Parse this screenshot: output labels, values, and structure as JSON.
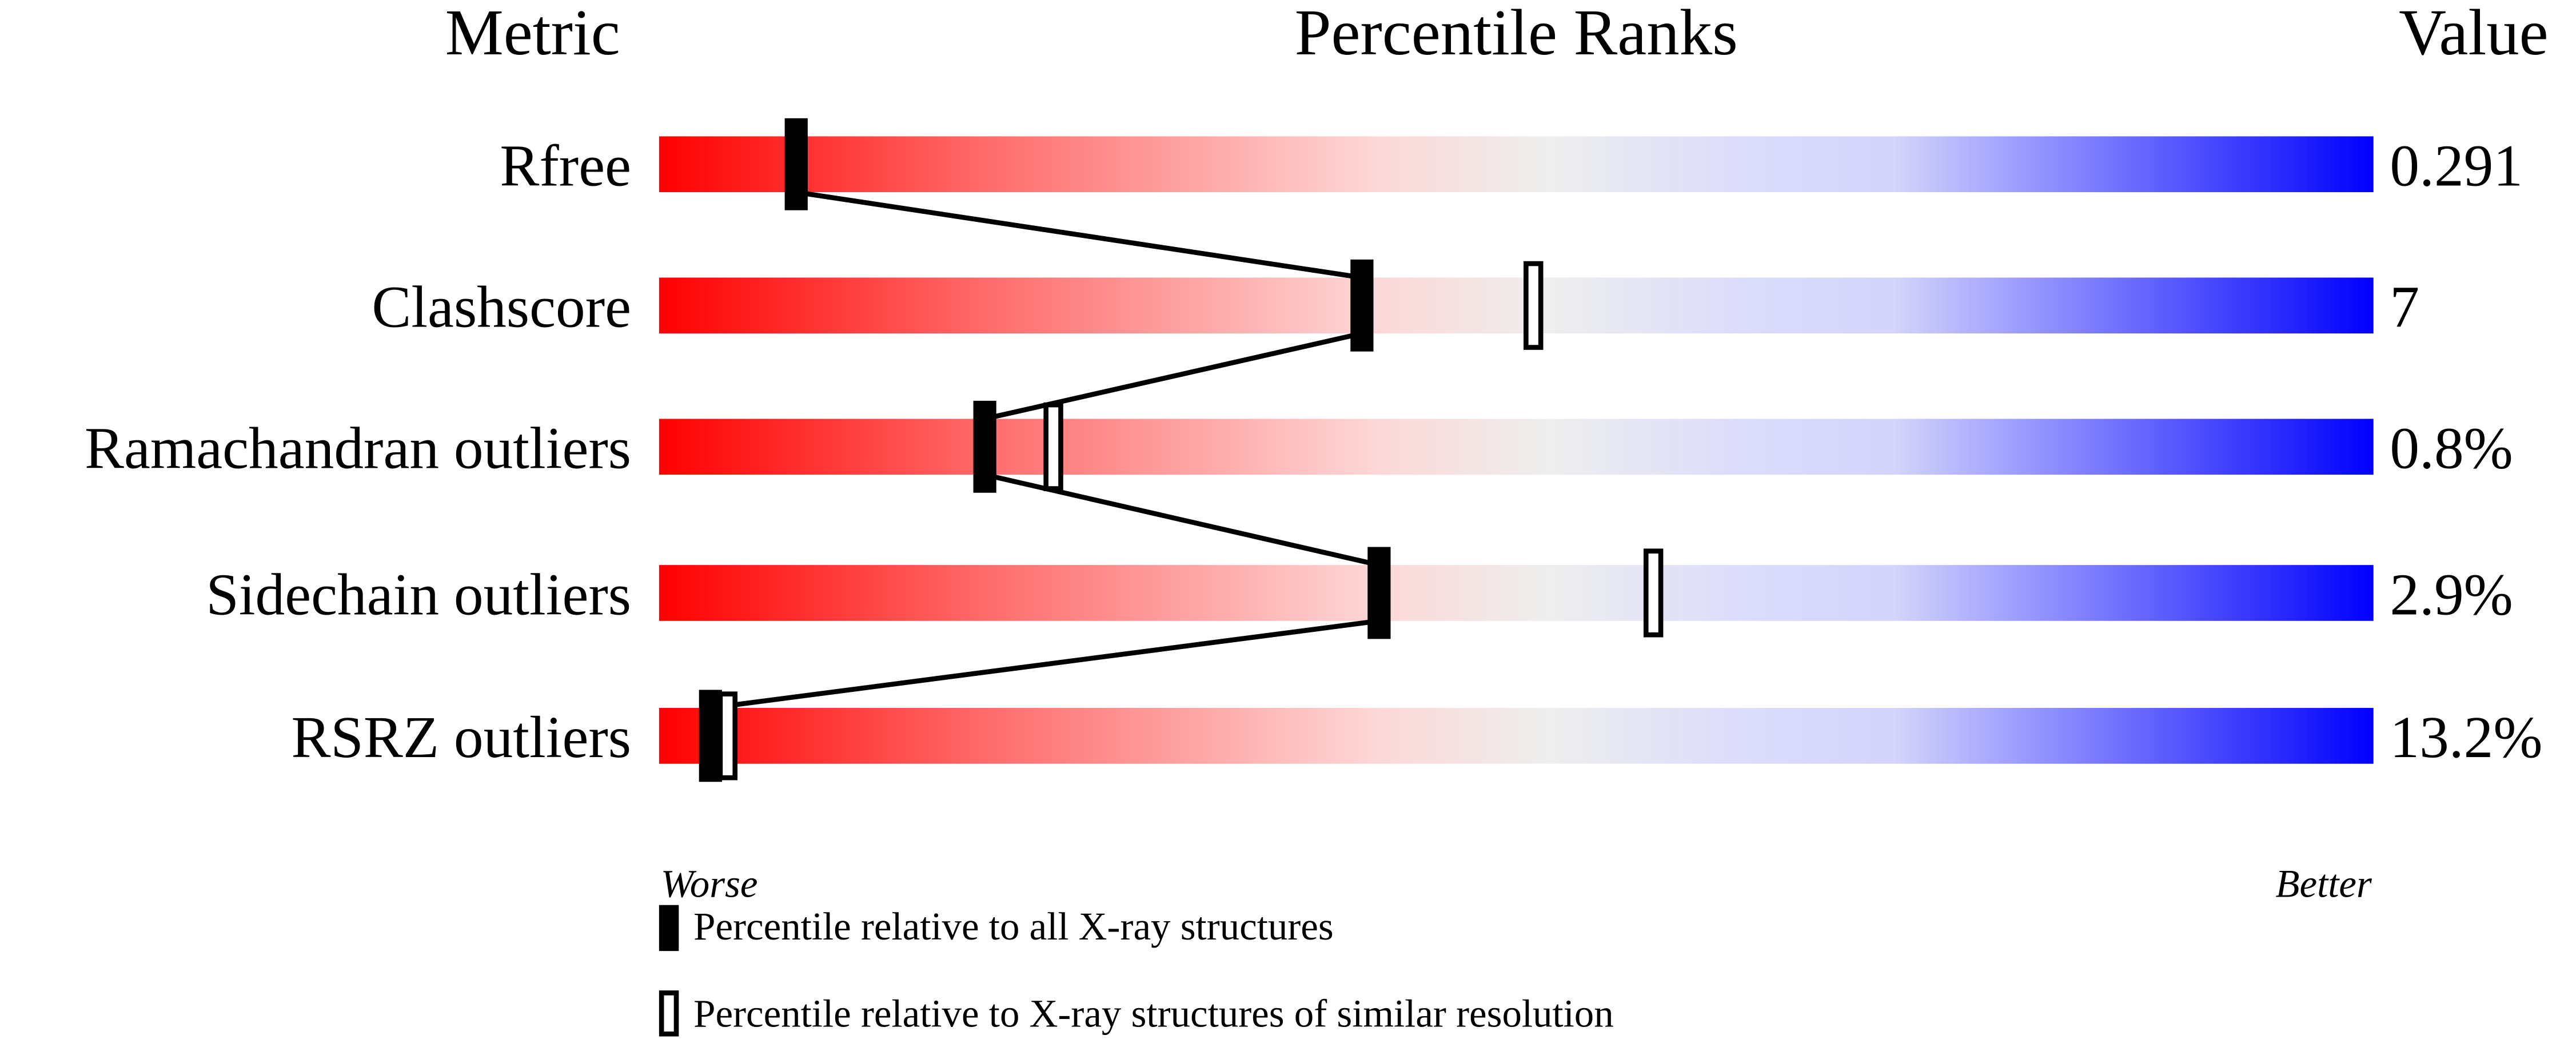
{
  "chart_data": {
    "type": "percentile-bar",
    "headers": {
      "metric": "Metric",
      "ranks": "Percentile Ranks",
      "value": "Value"
    },
    "xlim": [
      0,
      100
    ],
    "axis_labels": {
      "left": "Worse",
      "right": "Better"
    },
    "metrics": [
      {
        "label": "Rfree",
        "value": "0.291",
        "percentile_all": 8,
        "percentile_similar": null
      },
      {
        "label": "Clashscore",
        "value": "7",
        "percentile_all": 41,
        "percentile_similar": 51
      },
      {
        "label": "Ramachandran outliers",
        "value": "0.8%",
        "percentile_all": 19,
        "percentile_similar": 23
      },
      {
        "label": "Sidechain outliers",
        "value": "2.9%",
        "percentile_all": 42,
        "percentile_similar": 58
      },
      {
        "label": "RSRZ outliers",
        "value": "13.2%",
        "percentile_all": 3,
        "percentile_similar": 4
      }
    ],
    "legend": {
      "all": "Percentile relative to all X-ray structures",
      "similar": "Percentile relative to X-ray structures of similar resolution"
    },
    "colors": {
      "worse": "#ff0000",
      "middle": "#eeeeee",
      "better": "#0000ff"
    }
  }
}
